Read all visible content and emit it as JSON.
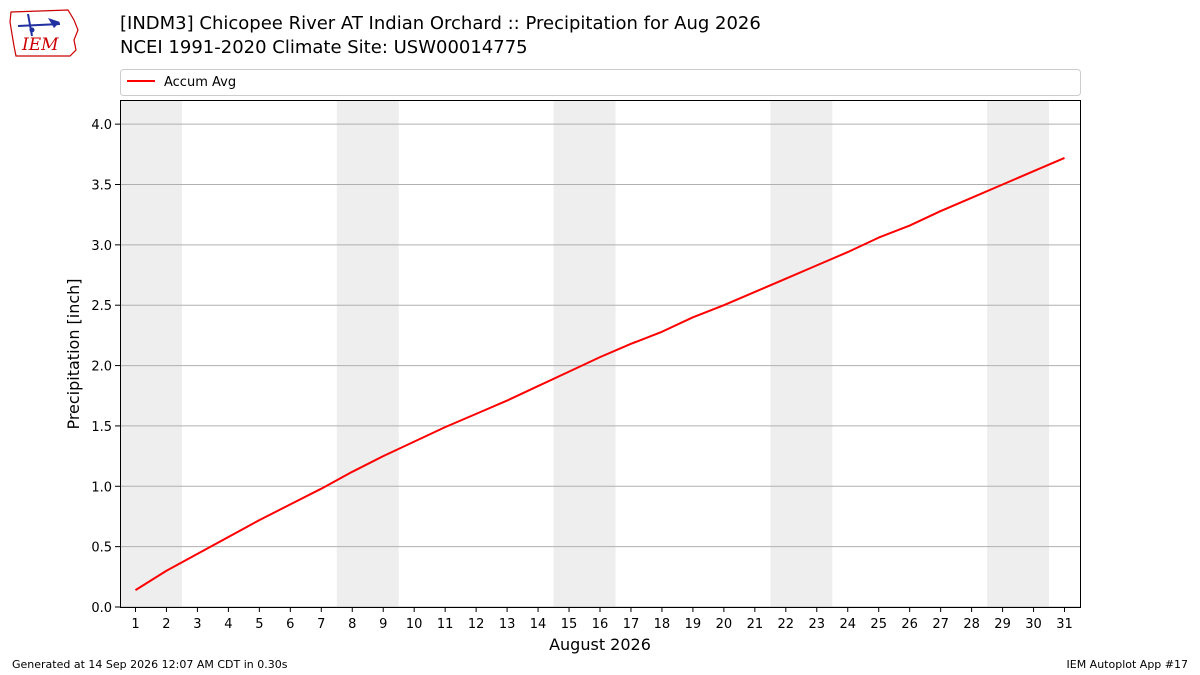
{
  "header": {
    "title_line1": "[INDM3] Chicopee River  AT Indian Orchard :: Precipitation for Aug 2026",
    "title_line2": "NCEI 1991-2020 Climate Site: USW00014775",
    "logo_text": "IEM"
  },
  "footer": {
    "generated": "Generated at 14 Sep 2026 12:07 AM CDT in 0.30s",
    "app": "IEM Autoplot App #17"
  },
  "colors": {
    "line": "#ff0000",
    "weekend_band": "#eeeeee",
    "grid": "#b0b0b0",
    "logo": "#cc0000"
  },
  "chart_data": {
    "type": "line",
    "xlabel": "August 2026",
    "ylabel": "Precipitation [inch]",
    "xlim": [
      0.5,
      31.5
    ],
    "ylim": [
      0,
      4.2
    ],
    "xticks": [
      1,
      2,
      3,
      4,
      5,
      6,
      7,
      8,
      9,
      10,
      11,
      12,
      13,
      14,
      15,
      16,
      17,
      18,
      19,
      20,
      21,
      22,
      23,
      24,
      25,
      26,
      27,
      28,
      29,
      30,
      31
    ],
    "yticks": [
      0.0,
      0.5,
      1.0,
      1.5,
      2.0,
      2.5,
      3.0,
      3.5,
      4.0
    ],
    "ytick_labels": [
      "0.0",
      "0.5",
      "1.0",
      "1.5",
      "2.0",
      "2.5",
      "3.0",
      "3.5",
      "4.0"
    ],
    "grid": "horizontal",
    "legend_position": "top",
    "shaded_spans": [
      [
        0.5,
        2.5
      ],
      [
        7.5,
        9.5
      ],
      [
        14.5,
        16.5
      ],
      [
        21.5,
        23.5
      ],
      [
        28.5,
        30.5
      ]
    ],
    "series": [
      {
        "name": "Accum Avg",
        "color": "#ff0000",
        "x": [
          1,
          2,
          3,
          4,
          5,
          6,
          7,
          8,
          9,
          10,
          11,
          12,
          13,
          14,
          15,
          16,
          17,
          18,
          19,
          20,
          21,
          22,
          23,
          24,
          25,
          26,
          27,
          28,
          29,
          30,
          31
        ],
        "y": [
          0.14,
          0.3,
          0.44,
          0.58,
          0.72,
          0.85,
          0.98,
          1.12,
          1.25,
          1.37,
          1.49,
          1.6,
          1.71,
          1.83,
          1.95,
          2.07,
          2.18,
          2.28,
          2.4,
          2.5,
          2.61,
          2.72,
          2.83,
          2.94,
          3.06,
          3.16,
          3.28,
          3.39,
          3.5,
          3.61,
          3.72
        ]
      }
    ]
  }
}
